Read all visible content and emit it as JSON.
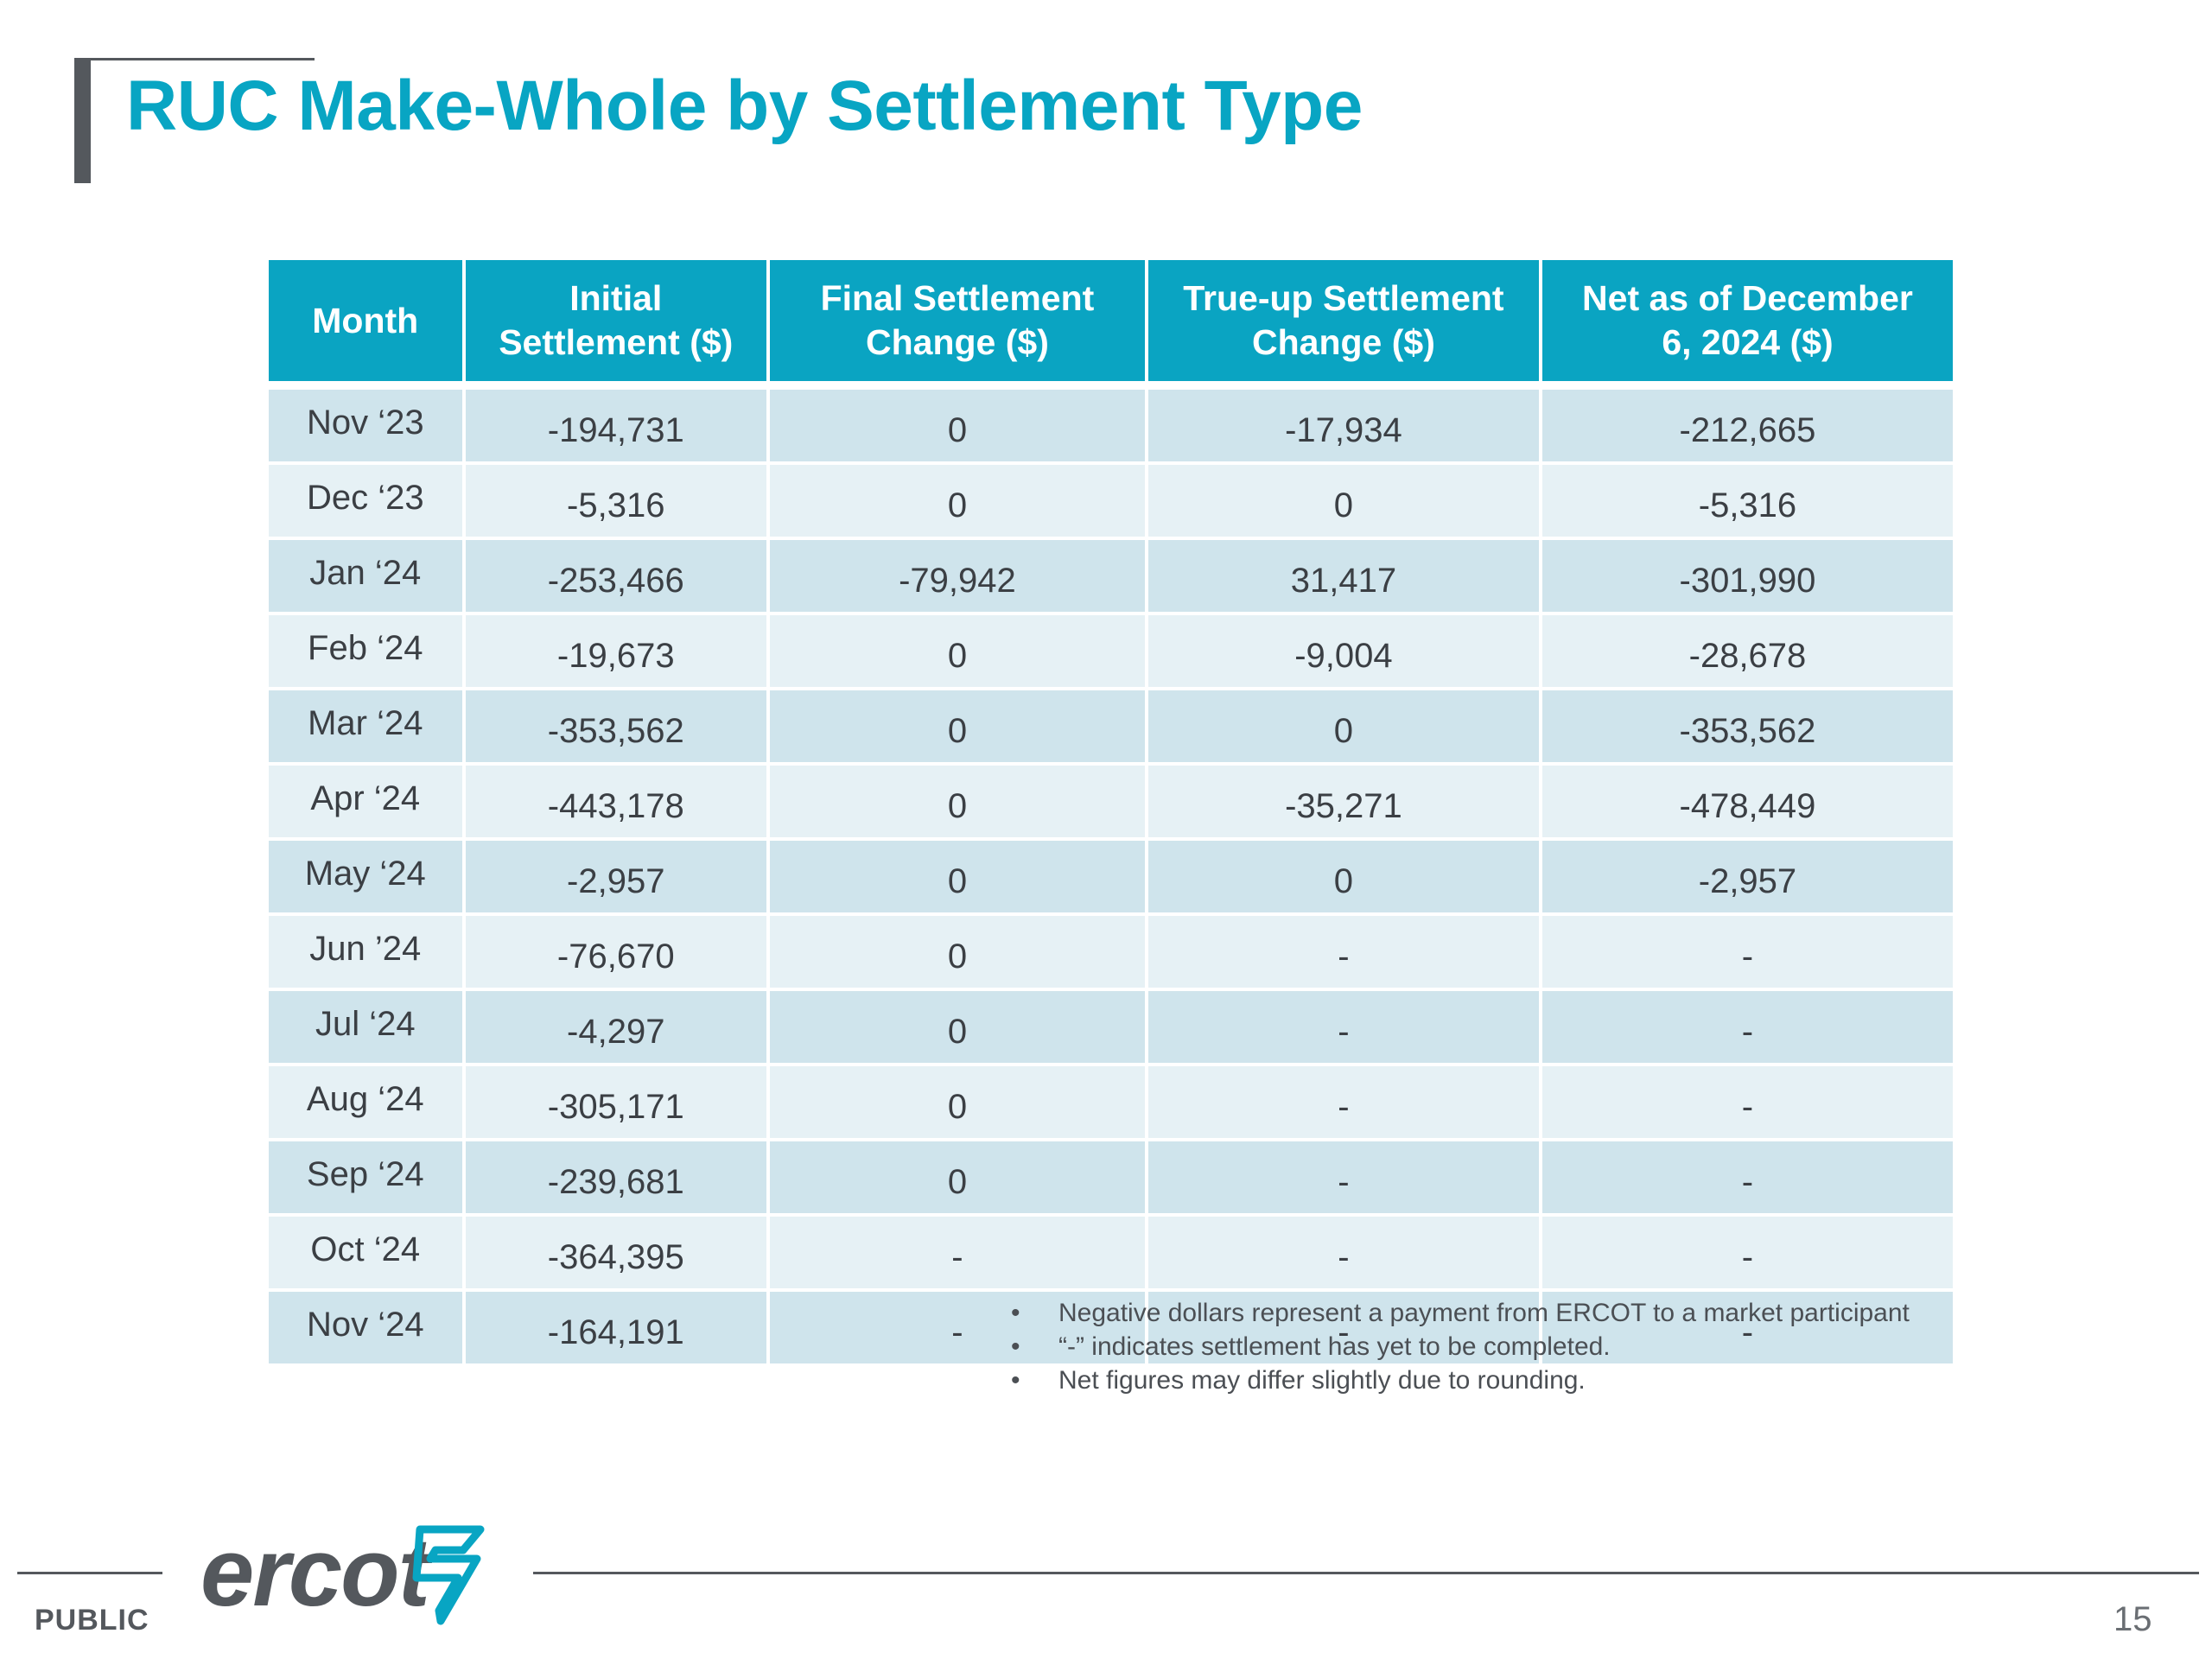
{
  "title": "RUC Make-Whole by Settlement Type",
  "table": {
    "headers": [
      [
        "Month"
      ],
      [
        "Initial",
        "Settlement ($)"
      ],
      [
        "Final Settlement",
        "Change ($)"
      ],
      [
        "True-up Settlement",
        "Change ($)"
      ],
      [
        "Net as of December",
        "6, 2024 ($)"
      ]
    ],
    "rows": [
      [
        "Nov ‘23",
        "-194,731",
        "0",
        "-17,934",
        "-212,665"
      ],
      [
        "Dec ‘23",
        "-5,316",
        "0",
        "0",
        "-5,316"
      ],
      [
        "Jan ‘24",
        "-253,466",
        "-79,942",
        "31,417",
        "-301,990"
      ],
      [
        "Feb ‘24",
        "-19,673",
        "0",
        "-9,004",
        "-28,678"
      ],
      [
        "Mar ‘24",
        "-353,562",
        "0",
        "0",
        "-353,562"
      ],
      [
        "Apr ‘24",
        "-443,178",
        "0",
        "-35,271",
        "-478,449"
      ],
      [
        "May ‘24",
        "-2,957",
        "0",
        "0",
        "-2,957"
      ],
      [
        "Jun ’24",
        "-76,670",
        "0",
        "-",
        "-"
      ],
      [
        "Jul ‘24",
        "-4,297",
        "0",
        "-",
        "-"
      ],
      [
        "Aug ‘24",
        "-305,171",
        "0",
        "-",
        "-"
      ],
      [
        "Sep ‘24",
        "-239,681",
        "0",
        "-",
        "-"
      ],
      [
        "Oct ‘24",
        "-364,395",
        "-",
        "-",
        "-"
      ],
      [
        "Nov ‘24",
        "-164,191",
        "-",
        "-",
        "-"
      ]
    ]
  },
  "notes": {
    "bullet": "•",
    "items": [
      "Negative dollars represent a payment from ERCOT to a market participant",
      "“-” indicates settlement has yet to be completed.",
      "Net figures may differ slightly due to rounding."
    ]
  },
  "footer": {
    "logo_text": "ercot",
    "logo_icon": "lightning-bolt-icon",
    "classification": "PUBLIC",
    "page_number": "15"
  },
  "colors": {
    "accent": "#08a5c3",
    "header_bg": "#0aa4c2",
    "row_dark": "#cfe4ec",
    "row_light": "#e6f1f5",
    "gray": "#54585d"
  }
}
